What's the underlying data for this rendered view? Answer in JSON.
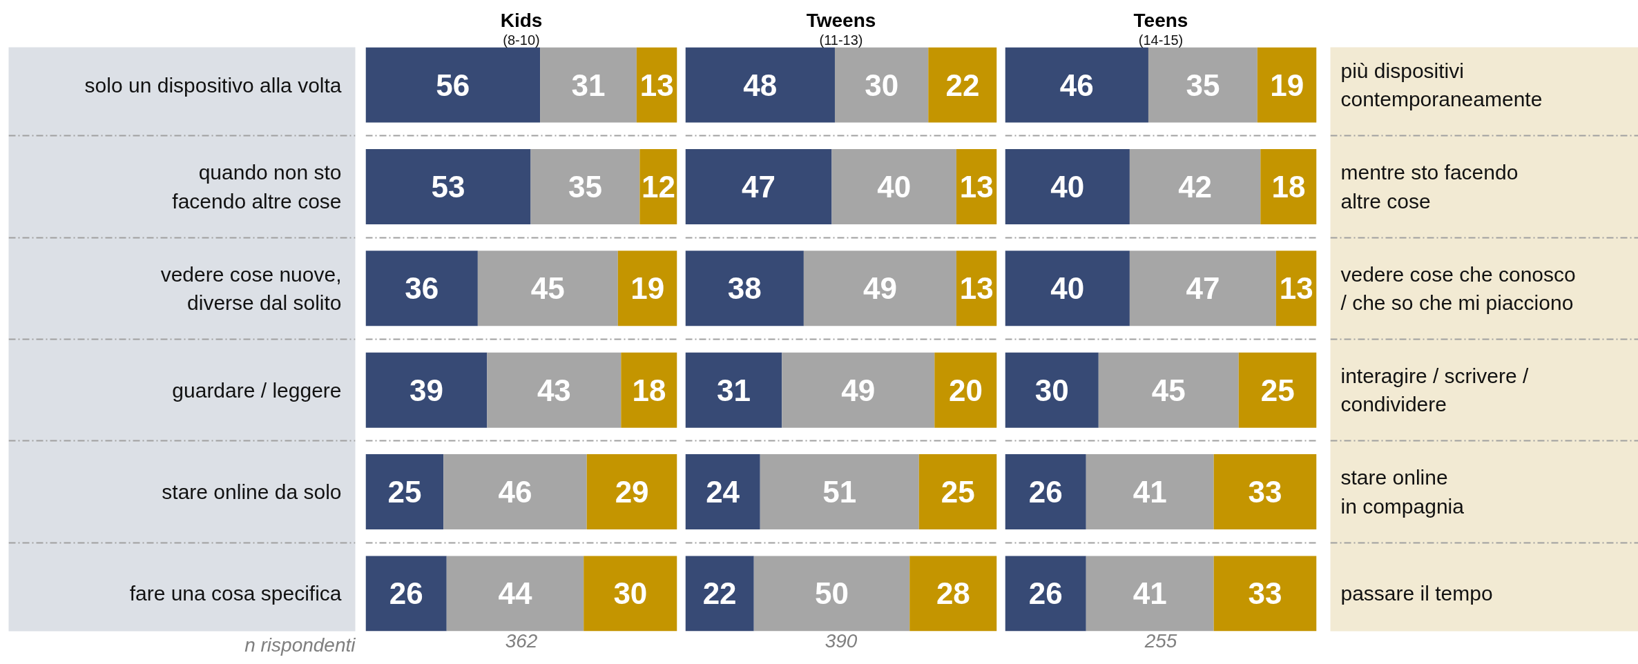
{
  "chart_data": [
    {
      "type": "bar",
      "orientation": "horizontal",
      "stacked": true,
      "title": "Kids",
      "subtitle": "(8-10)",
      "categories": [
        "solo un dispositivo alla volta",
        "quando non sto\nfacendo altre cose",
        "vedere cose nuove,\ndiverse dal solito",
        "guardare / leggere",
        "stare online da solo",
        "fare una cosa specifica"
      ],
      "series": [
        {
          "color": "#374a75",
          "values": [
            56,
            53,
            36,
            39,
            25,
            26
          ]
        },
        {
          "color": "#a6a6a6",
          "values": [
            31,
            35,
            45,
            43,
            46,
            44
          ]
        },
        {
          "color": "#c49500",
          "values": [
            13,
            12,
            19,
            18,
            29,
            30
          ]
        }
      ],
      "xlim": [
        0,
        100
      ],
      "data_labels": true,
      "grid": "y",
      "tick_labels": "y",
      "annotations": [
        "n rispondenti",
        "362"
      ]
    },
    {
      "type": "bar",
      "orientation": "horizontal",
      "stacked": true,
      "title": "Tweens",
      "subtitle": "(11-13)",
      "categories": [
        null,
        null,
        null,
        null,
        null,
        null
      ],
      "series": [
        {
          "color": "#374a75",
          "values": [
            48,
            47,
            38,
            31,
            24,
            22
          ]
        },
        {
          "color": "#a6a6a6",
          "values": [
            30,
            40,
            49,
            49,
            51,
            50
          ]
        },
        {
          "color": "#c49500",
          "values": [
            22,
            13,
            13,
            20,
            25,
            28
          ]
        }
      ],
      "xlim": [
        0,
        100
      ],
      "data_labels": true,
      "grid": "y",
      "tick_labels": false,
      "annotations": [
        "390"
      ]
    },
    {
      "type": "bar",
      "orientation": "horizontal",
      "stacked": true,
      "title": "Teens",
      "subtitle": "(14-15)",
      "categories": [
        null,
        null,
        null,
        null,
        null,
        null
      ],
      "y2_categories": [
        "più dispositivi\ncontemporaneamente",
        "mentre sto facendo\naltre cose",
        "vedere cose che conosco\n/ che so che mi piacciono",
        "interagire / scrivere /\ncondividere",
        "stare online\nin compagnia",
        "passare il tempo"
      ],
      "series": [
        {
          "color": "#374a75",
          "values": [
            46,
            40,
            40,
            30,
            26,
            26
          ]
        },
        {
          "color": "#a6a6a6",
          "values": [
            35,
            42,
            47,
            45,
            41,
            41
          ]
        },
        {
          "color": "#c49500",
          "values": [
            19,
            18,
            13,
            25,
            33,
            33
          ]
        }
      ],
      "xlim": [
        0,
        100
      ],
      "data_labels": true,
      "grid": "y",
      "tick_labels": false,
      "annotations": [
        "255"
      ]
    }
  ]
}
